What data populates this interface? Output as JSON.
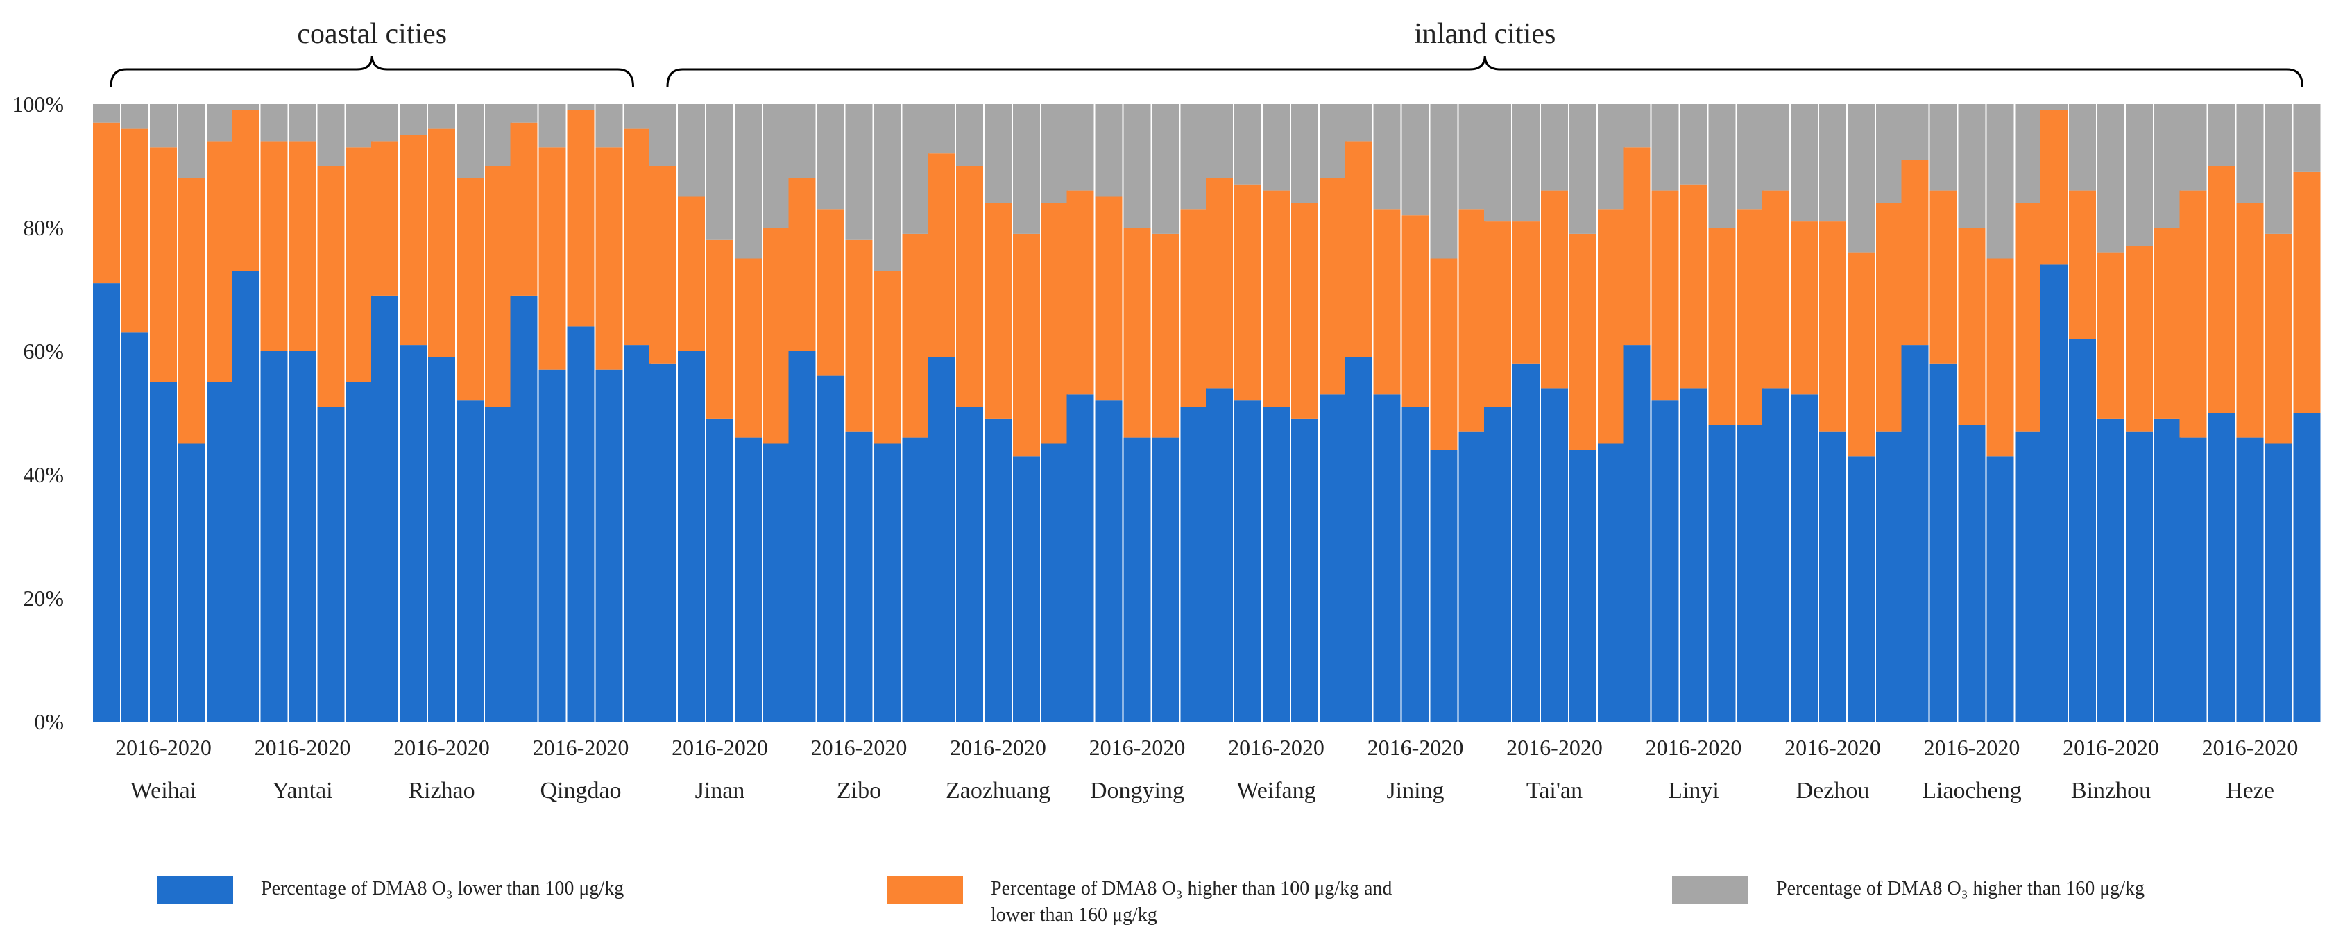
{
  "chart_data": {
    "type": "bar",
    "stacked": true,
    "normalized": true,
    "ylim": [
      0,
      100
    ],
    "yticks": [
      "0%",
      "20%",
      "40%",
      "60%",
      "80%",
      "100%"
    ],
    "period_label": "2016-2020",
    "years": [
      2016,
      2017,
      2018,
      2019,
      2020
    ],
    "groups": [
      {
        "name": "coastal cities",
        "cities": [
          "Weihai",
          "Yantai",
          "Rizhao",
          "Qingdao"
        ]
      },
      {
        "name": "inland cities",
        "cities": [
          "Jinan",
          "Zibo",
          "Zaozhuang",
          "Dongying",
          "Weifang",
          "Jining",
          "Tai'an",
          "Linyi",
          "Dezhou",
          "Liaocheng",
          "Binzhou",
          "Heze"
        ]
      }
    ],
    "series": [
      {
        "name": "Percentage of DMA8 O₃ lower than 100 μg/kg",
        "color": "#1f6fcc"
      },
      {
        "name": "Percentage of DMA8 O₃ higher than 100 μg/kg and\nlower than 160 μg/kg",
        "color": "#fb8431"
      },
      {
        "name": "Percentage of DMA8 O₃ higher than 160 μg/kg",
        "color": "#a6a6a6"
      }
    ],
    "cities": [
      {
        "name": "Weihai",
        "low": [
          71,
          63,
          55,
          45,
          55
        ],
        "mid": [
          26,
          33,
          38,
          43,
          39
        ]
      },
      {
        "name": "Yantai",
        "low": [
          73,
          60,
          60,
          51,
          55
        ],
        "mid": [
          26,
          34,
          34,
          39,
          38
        ]
      },
      {
        "name": "Rizhao",
        "low": [
          69,
          61,
          59,
          52,
          51
        ],
        "mid": [
          25,
          34,
          37,
          36,
          39
        ]
      },
      {
        "name": "Qingdao",
        "low": [
          69,
          57,
          64,
          57,
          61
        ],
        "mid": [
          28,
          36,
          35,
          36,
          35
        ]
      },
      {
        "name": "Jinan",
        "low": [
          58,
          60,
          49,
          46,
          45
        ],
        "mid": [
          32,
          25,
          29,
          29,
          35
        ]
      },
      {
        "name": "Zibo",
        "low": [
          60,
          56,
          47,
          45,
          46
        ],
        "mid": [
          28,
          27,
          31,
          28,
          33
        ]
      },
      {
        "name": "Zaozhuang",
        "low": [
          59,
          51,
          49,
          43,
          45
        ],
        "mid": [
          33,
          39,
          35,
          36,
          39
        ]
      },
      {
        "name": "Dongying",
        "low": [
          53,
          52,
          46,
          46,
          51
        ],
        "mid": [
          33,
          33,
          34,
          33,
          32
        ]
      },
      {
        "name": "Weifang",
        "low": [
          54,
          52,
          51,
          49,
          53
        ],
        "mid": [
          34,
          35,
          35,
          35,
          35
        ]
      },
      {
        "name": "Jining",
        "low": [
          59,
          53,
          51,
          44,
          47
        ],
        "mid": [
          35,
          30,
          31,
          31,
          36
        ]
      },
      {
        "name": "Tai'an",
        "low": [
          51,
          58,
          54,
          44,
          45
        ],
        "mid": [
          30,
          23,
          32,
          35,
          38
        ]
      },
      {
        "name": "Linyi",
        "low": [
          61,
          52,
          54,
          48,
          48
        ],
        "mid": [
          32,
          34,
          33,
          32,
          35
        ]
      },
      {
        "name": "Dezhou",
        "low": [
          54,
          53,
          47,
          43,
          47
        ],
        "mid": [
          32,
          28,
          34,
          33,
          37
        ]
      },
      {
        "name": "Liaocheng",
        "low": [
          61,
          58,
          48,
          43,
          47
        ],
        "mid": [
          30,
          28,
          32,
          32,
          37
        ]
      },
      {
        "name": "Binzhou",
        "low": [
          74,
          62,
          49,
          47,
          49
        ],
        "mid": [
          25,
          24,
          27,
          30,
          31
        ]
      },
      {
        "name": "Heze",
        "low": [
          46,
          50,
          46,
          45,
          50
        ],
        "mid": [
          40,
          40,
          38,
          34,
          39
        ]
      }
    ]
  }
}
